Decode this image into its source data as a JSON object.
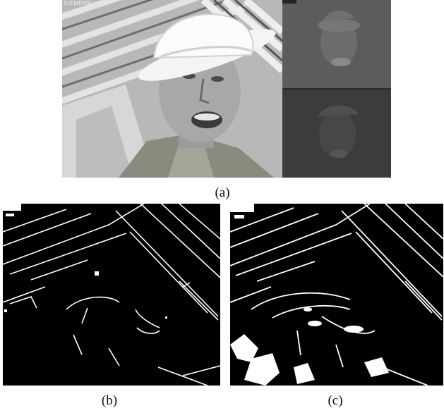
{
  "figure": {
    "panels": [
      {
        "id": "a",
        "caption": "(a)",
        "watermark": "SIEMENS"
      },
      {
        "id": "b",
        "caption": "(b)"
      },
      {
        "id": "c",
        "caption": "(c)"
      }
    ]
  },
  "colors": {
    "background": "#ffffff",
    "edge": "#ffffff",
    "edge_background": "#000000"
  }
}
